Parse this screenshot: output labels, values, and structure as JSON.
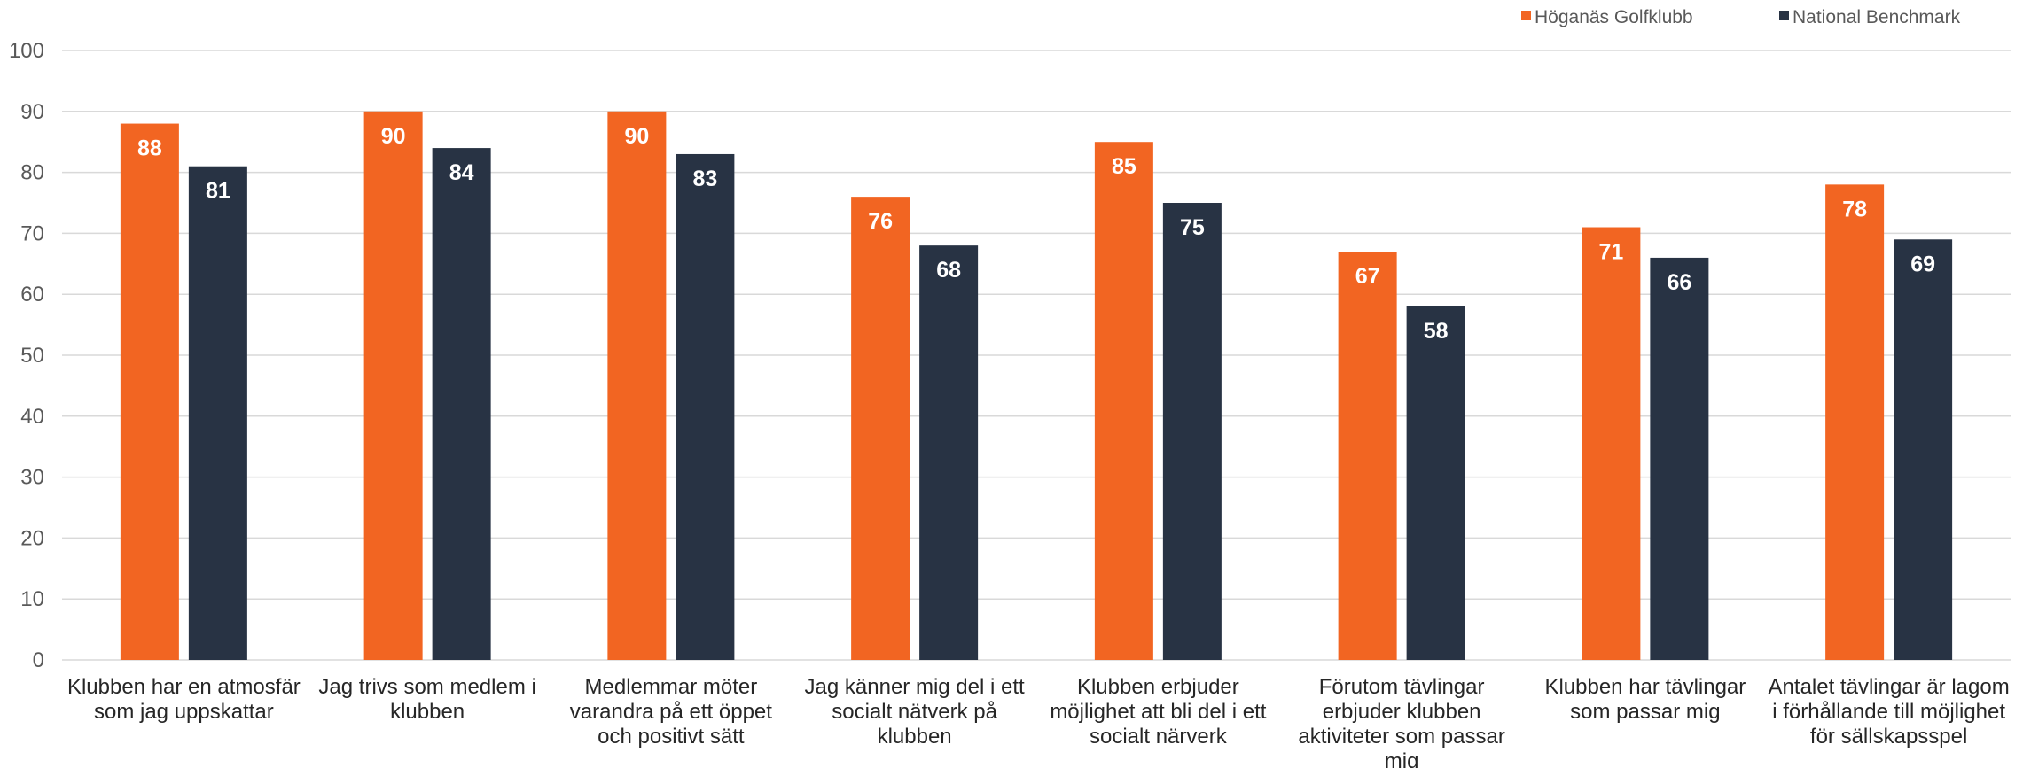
{
  "chart_data": {
    "type": "bar",
    "title": "",
    "xlabel": "",
    "ylabel": "",
    "ylim": [
      0,
      100
    ],
    "yticks": [
      0,
      10,
      20,
      30,
      40,
      50,
      60,
      70,
      80,
      90,
      100
    ],
    "grid": true,
    "legend_position": "top-right",
    "categories": [
      [
        "Klubben har en atmosfär",
        "som jag uppskattar"
      ],
      [
        "Jag trivs som medlem i",
        "klubben"
      ],
      [
        "Medlemmar möter",
        "varandra på ett öppet",
        "och positivt sätt"
      ],
      [
        "Jag känner mig del i ett",
        "socialt nätverk på",
        "klubben"
      ],
      [
        "Klubben erbjuder",
        "möjlighet att bli del i ett",
        "socialt närverk"
      ],
      [
        "Förutom tävlingar",
        "erbjuder klubben",
        "aktiviteter som passar",
        "mig"
      ],
      [
        "Klubben har tävlingar",
        "som passar mig"
      ],
      [
        "Antalet tävlingar är lagom",
        "i förhållande till möjlighet",
        "för sällskapsspel"
      ]
    ],
    "series": [
      {
        "name": "Höganäs Golfklubb",
        "color": "#f26522",
        "values": [
          88,
          90,
          90,
          76,
          85,
          67,
          71,
          78
        ]
      },
      {
        "name": "National Benchmark",
        "color": "#283344",
        "values": [
          81,
          84,
          83,
          68,
          75,
          58,
          66,
          69
        ]
      }
    ],
    "data_labels": true
  }
}
